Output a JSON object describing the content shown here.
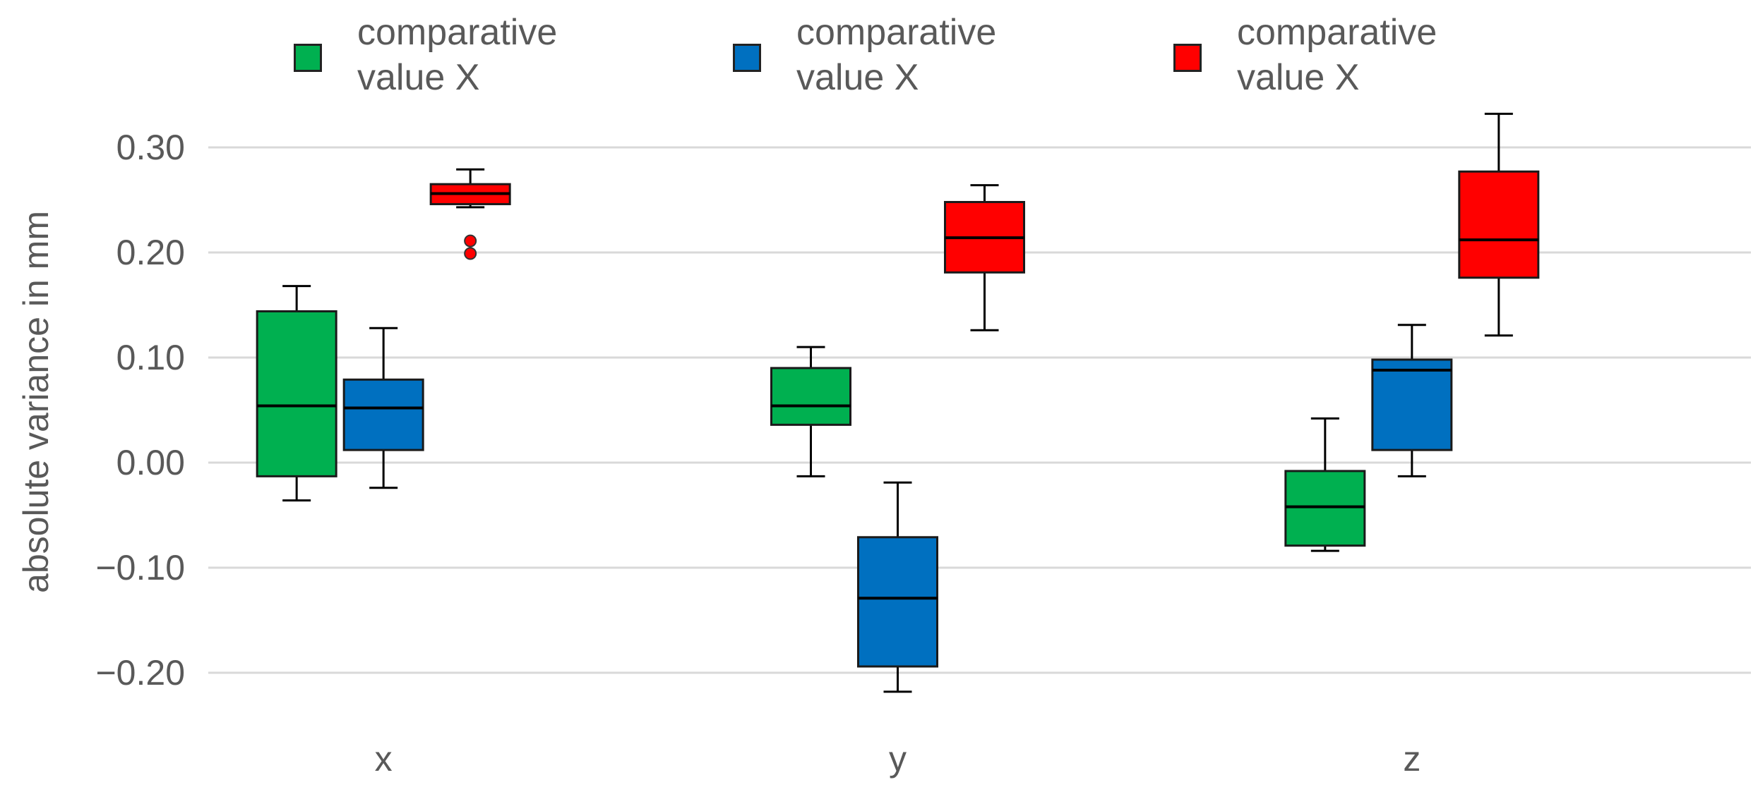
{
  "chart_data": {
    "type": "box",
    "title": "",
    "xlabel": "",
    "ylabel": "absolute variance in mm",
    "ylim": [
      -0.2,
      0.3
    ],
    "yticks": [
      "0.30",
      "0.20",
      "0.10",
      "0.00",
      "−0.10",
      "−0.20"
    ],
    "ytick_values": [
      0.3,
      0.2,
      0.1,
      0.0,
      -0.1,
      -0.2
    ],
    "grid": true,
    "legend_position": "top",
    "categories": [
      "x",
      "y",
      "z"
    ],
    "series": [
      {
        "name": "comparative value X",
        "color": "#00b050",
        "boxes": [
          {
            "category": "x",
            "min": -0.036,
            "q1": -0.013,
            "median": 0.054,
            "q3": 0.144,
            "max": 0.168,
            "outliers": []
          },
          {
            "category": "y",
            "min": -0.013,
            "q1": 0.036,
            "median": 0.054,
            "q3": 0.09,
            "max": 0.11,
            "outliers": []
          },
          {
            "category": "z",
            "min": -0.084,
            "q1": -0.079,
            "median": -0.042,
            "q3": -0.008,
            "max": 0.042,
            "outliers": []
          }
        ]
      },
      {
        "name": "comparative value X",
        "color": "#0070c0",
        "boxes": [
          {
            "category": "x",
            "min": -0.024,
            "q1": 0.012,
            "median": 0.052,
            "q3": 0.079,
            "max": 0.128,
            "outliers": []
          },
          {
            "category": "y",
            "min": -0.218,
            "q1": -0.194,
            "median": -0.129,
            "q3": -0.071,
            "max": -0.019,
            "outliers": []
          },
          {
            "category": "z",
            "min": -0.013,
            "q1": 0.012,
            "median": 0.088,
            "q3": 0.098,
            "max": 0.131,
            "outliers": []
          }
        ]
      },
      {
        "name": "comparative value X",
        "color": "#ff0000",
        "boxes": [
          {
            "category": "x",
            "min": 0.243,
            "q1": 0.246,
            "median": 0.256,
            "q3": 0.265,
            "max": 0.279,
            "outliers": [
              0.211,
              0.199
            ]
          },
          {
            "category": "y",
            "min": 0.126,
            "q1": 0.181,
            "median": 0.214,
            "q3": 0.248,
            "max": 0.264,
            "outliers": []
          },
          {
            "category": "z",
            "min": 0.121,
            "q1": 0.176,
            "median": 0.212,
            "q3": 0.277,
            "max": 0.332,
            "outliers": []
          }
        ]
      }
    ]
  }
}
